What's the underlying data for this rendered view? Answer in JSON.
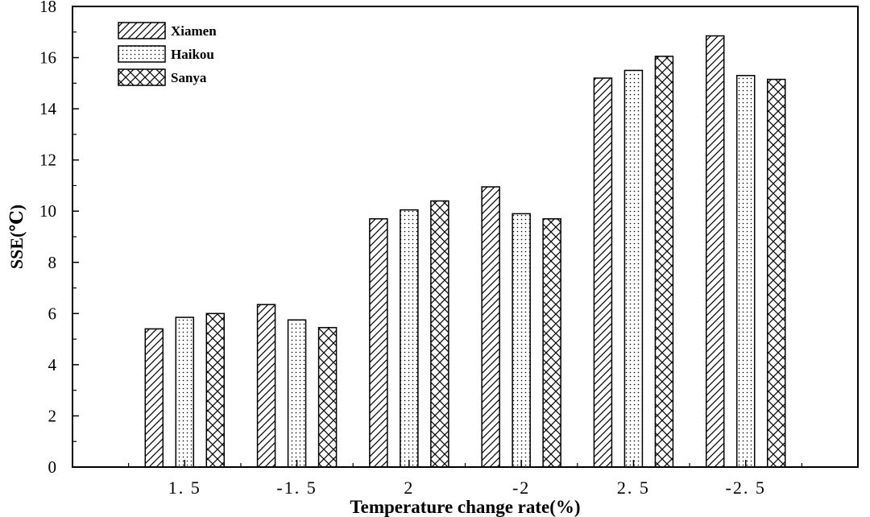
{
  "chart_data": {
    "type": "bar",
    "xlabel": "Temperature change rate(%)",
    "ylabel": "SSE(℃)",
    "ylim": [
      0,
      18
    ],
    "yticks": [
      0,
      2,
      4,
      6,
      8,
      10,
      12,
      14,
      16,
      18
    ],
    "categories": [
      "1. 5",
      "-1. 5",
      "2",
      "-2",
      "2. 5",
      "-2. 5"
    ],
    "series": [
      {
        "name": "Xiamen",
        "pattern": "diagonal",
        "values": [
          5.4,
          6.35,
          9.7,
          10.95,
          15.2,
          16.85
        ]
      },
      {
        "name": "Haikou",
        "pattern": "dots",
        "values": [
          5.85,
          5.75,
          10.05,
          9.9,
          15.5,
          15.3
        ]
      },
      {
        "name": "Sanya",
        "pattern": "crosshatch",
        "values": [
          6.0,
          5.45,
          10.4,
          9.7,
          16.05,
          15.15
        ]
      }
    ],
    "grid": false,
    "legend_position": "top-left",
    "colors": {
      "stroke": "#000000",
      "background": "#ffffff"
    }
  }
}
